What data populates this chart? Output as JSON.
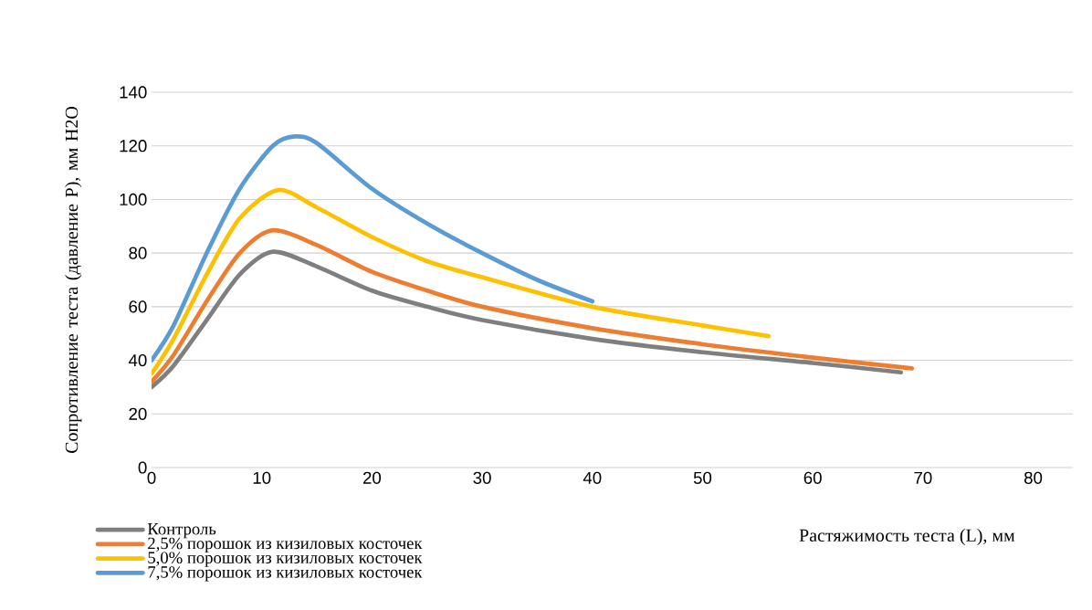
{
  "chart_data": {
    "type": "line",
    "xlabel": "Растяжимость теста (L), мм",
    "ylabel": "Сопротивление теста  (давление P), мм H2O",
    "xlim": [
      0,
      83.6
    ],
    "ylim": [
      0,
      140
    ],
    "xticks": [
      0,
      10,
      20,
      30,
      40,
      50,
      60,
      70,
      80
    ],
    "yticks": [
      0,
      20,
      40,
      60,
      80,
      100,
      120,
      140
    ],
    "grid": "y",
    "legend": "bottom",
    "series": [
      {
        "name": "Контроль",
        "color": "#7f7f7f",
        "x": [
          0,
          2,
          5,
          8,
          11,
          15,
          20,
          25,
          30,
          40,
          50,
          60,
          68
        ],
        "values": [
          30,
          38,
          55,
          72,
          80.5,
          75,
          66,
          60,
          55,
          48,
          43,
          39,
          35.5
        ]
      },
      {
        "name": "2,5% порошок из кизиловых косточек",
        "color": "#ed7d31",
        "x": [
          0,
          2,
          5,
          8,
          11,
          15,
          20,
          25,
          30,
          40,
          50,
          60,
          69
        ],
        "values": [
          32,
          42,
          62,
          80,
          88.5,
          83,
          73,
          66,
          60,
          52,
          46,
          41,
          37
        ]
      },
      {
        "name": "5,0% порошок из кизиловых косточек",
        "color": "#ffc000",
        "x": [
          0,
          2,
          5,
          8,
          11.5,
          15,
          20,
          25,
          30,
          40,
          50,
          56
        ],
        "values": [
          35,
          48,
          72,
          93,
          103.5,
          97,
          86,
          77,
          71,
          60,
          53,
          49
        ]
      },
      {
        "name": "7,5% порошок из кизиловых косточек",
        "color": "#5b9bd5",
        "x": [
          0,
          2,
          5,
          8,
          11,
          13,
          15,
          20,
          25,
          30,
          35,
          40
        ],
        "values": [
          40,
          53,
          80,
          104,
          120,
          123.5,
          121,
          104,
          91,
          80,
          70,
          62
        ]
      }
    ]
  }
}
